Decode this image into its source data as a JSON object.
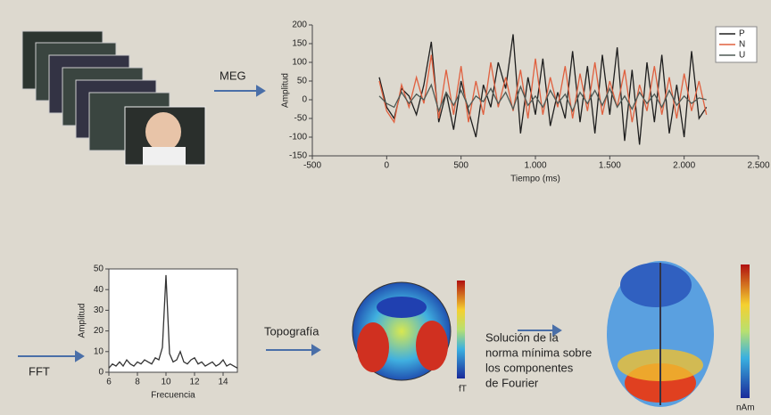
{
  "chart_data": [
    {
      "type": "line",
      "xlabel": "Tiempo (ms)",
      "ylabel": "Amplitud",
      "x": [
        -50,
        0,
        50,
        100,
        150,
        200,
        250,
        300,
        350,
        400,
        450,
        500,
        550,
        600,
        650,
        700,
        750,
        800,
        850,
        900,
        950,
        1000,
        1050,
        1100,
        1150,
        1200,
        1250,
        1300,
        1350,
        1400,
        1450,
        1500,
        1550,
        1600,
        1650,
        1700,
        1750,
        1800,
        1850,
        1900,
        1950,
        2000,
        2050,
        2100,
        2150
      ],
      "series": [
        {
          "name": "P",
          "color": "#1e1e1e",
          "values": [
            60,
            -20,
            -50,
            30,
            10,
            -40,
            40,
            155,
            -60,
            20,
            -80,
            50,
            -30,
            -100,
            40,
            -20,
            100,
            30,
            175,
            -90,
            60,
            -40,
            110,
            -70,
            20,
            -50,
            130,
            -60,
            90,
            -90,
            120,
            -40,
            140,
            -110,
            80,
            -120,
            100,
            -60,
            120,
            -90,
            40,
            -100,
            130,
            -50,
            -20
          ]
        },
        {
          "name": "N",
          "color": "#e0603f",
          "values": [
            50,
            -30,
            -60,
            40,
            -20,
            60,
            -10,
            120,
            -50,
            80,
            -40,
            90,
            -60,
            50,
            -40,
            100,
            -20,
            60,
            -30,
            80,
            -50,
            110,
            -40,
            60,
            -20,
            90,
            -50,
            70,
            -30,
            100,
            -40,
            50,
            -20,
            80,
            -60,
            40,
            -30,
            90,
            -40,
            60,
            -50,
            70,
            -30,
            50,
            -40
          ]
        },
        {
          "name": "U",
          "color": "#4f5a55",
          "values": [
            10,
            -10,
            -20,
            20,
            -10,
            15,
            0,
            40,
            -30,
            20,
            -15,
            25,
            -20,
            10,
            -5,
            30,
            -10,
            20,
            -25,
            35,
            -15,
            10,
            -20,
            25,
            -10,
            15,
            -30,
            20,
            -10,
            25,
            -15,
            30,
            -20,
            10,
            -25,
            20,
            -10,
            15,
            -20,
            25,
            -15,
            10,
            -10,
            5,
            0
          ]
        }
      ],
      "xlim": [
        -500,
        2500
      ],
      "xticks": [
        -500,
        0,
        500,
        {
          "value": 1000,
          "label": "1.000"
        },
        {
          "value": 1500,
          "label": "1.500"
        },
        {
          "value": 2000,
          "label": "2.000"
        },
        {
          "value": 2500,
          "label": "2.500"
        }
      ],
      "ylim": [
        -150,
        200
      ],
      "yticks": [
        -150,
        -100,
        -50,
        0,
        50,
        100,
        150,
        200
      ],
      "legend": "upper right"
    },
    {
      "type": "line",
      "xlabel": "Frecuencia",
      "ylabel": "Amplitud",
      "x": [
        6,
        6.25,
        6.5,
        6.75,
        7,
        7.25,
        7.5,
        7.75,
        8,
        8.25,
        8.5,
        8.75,
        9,
        9.25,
        9.5,
        9.75,
        10,
        10.25,
        10.5,
        10.75,
        11,
        11.25,
        11.5,
        11.75,
        12,
        12.25,
        12.5,
        12.75,
        13,
        13.25,
        13.5,
        13.75,
        14,
        14.25,
        14.5,
        14.75,
        15
      ],
      "values": [
        2,
        4,
        3,
        5,
        3,
        6,
        4,
        3,
        5,
        4,
        6,
        5,
        4,
        7,
        6,
        12,
        47,
        9,
        5,
        6,
        10,
        5,
        4,
        6,
        7,
        4,
        5,
        3,
        4,
        5,
        3,
        4,
        6,
        3,
        4,
        3,
        2
      ],
      "color": "#333333",
      "xlim": [
        6,
        15
      ],
      "xticks": [
        6,
        8,
        10,
        12,
        14
      ],
      "ylim": [
        0,
        50
      ],
      "yticks": [
        0,
        10,
        20,
        30,
        40,
        50
      ]
    }
  ],
  "labels": {
    "meg": "MEG",
    "fft": "FFT",
    "topography": "Topografía",
    "solution": [
      "Solución de la",
      "norma mínima sobre",
      "los componentes",
      "de Fourier"
    ],
    "topo_unit": "fT",
    "source_unit": "nAm"
  }
}
